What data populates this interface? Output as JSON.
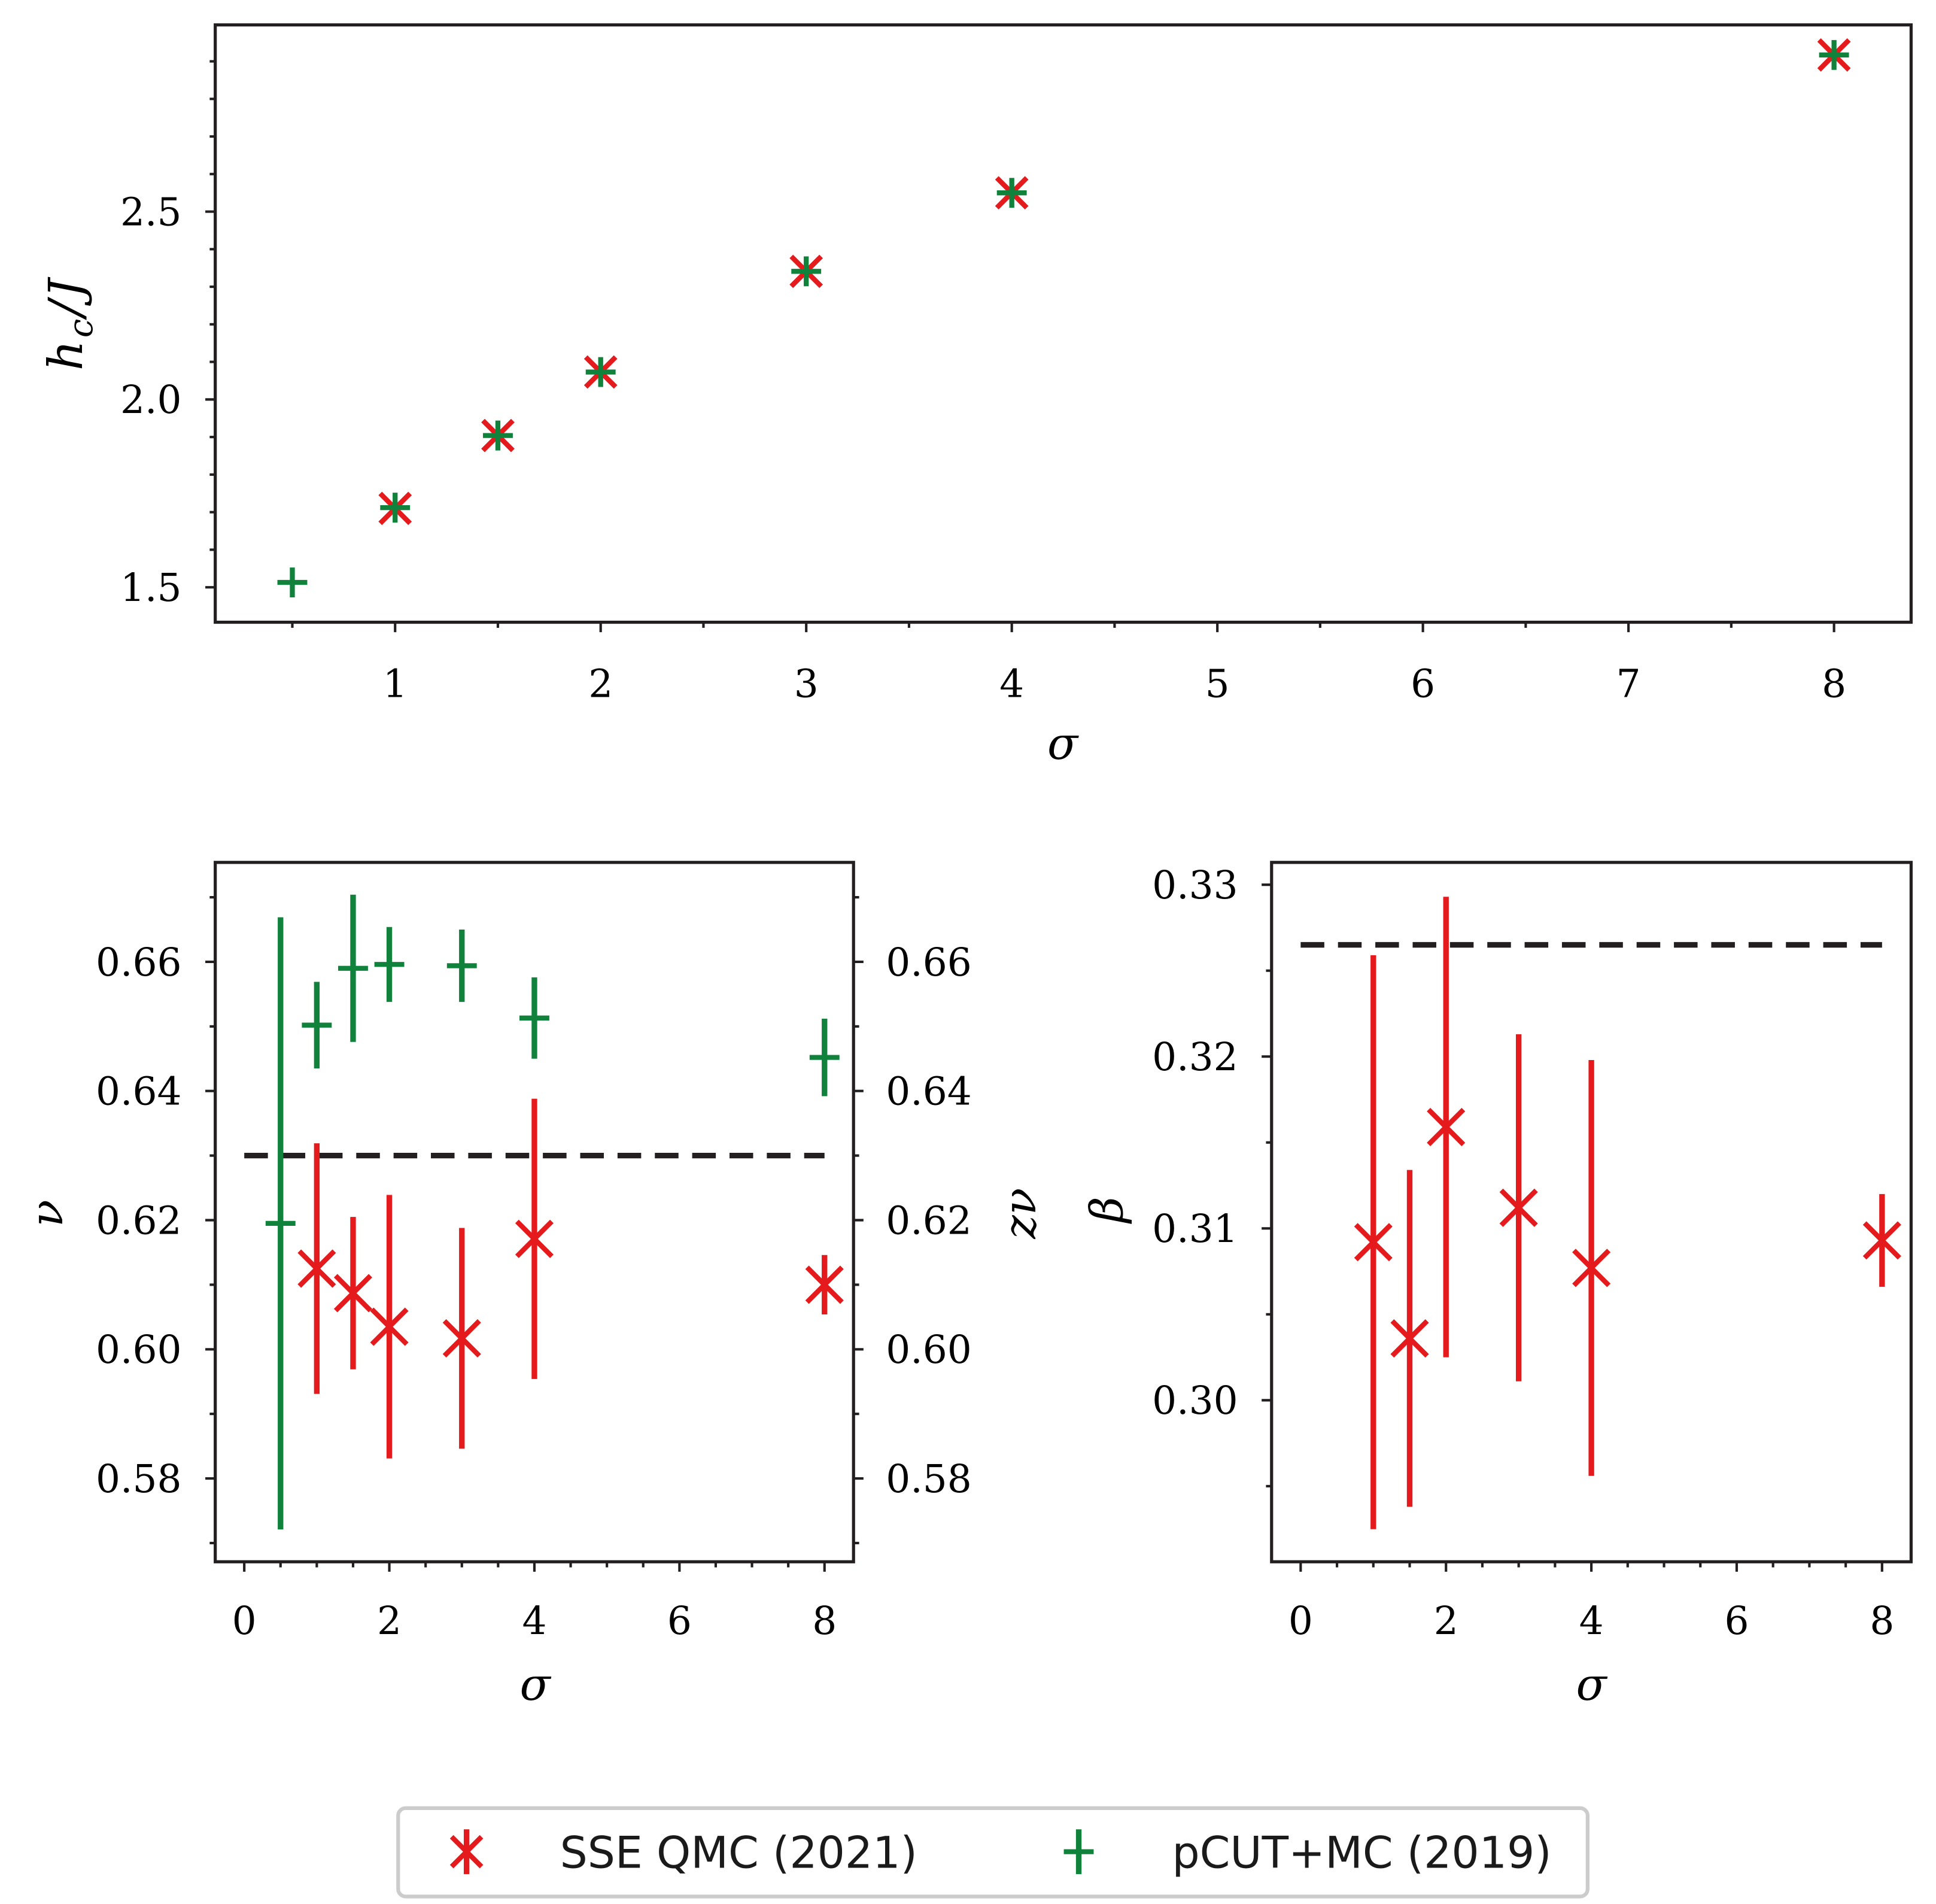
{
  "chart_data": [
    {
      "type": "scatter",
      "xlabel": "σ",
      "ylabel": {
        "base": "h",
        "sub": "c",
        "tail": "/J"
      },
      "xlim": [
        0.125,
        8.375
      ],
      "ylim": [
        1.407,
        2.997
      ],
      "xticks": [
        1,
        2,
        3,
        4,
        5,
        6,
        7,
        8
      ],
      "xtick_labels": [
        "1",
        "2",
        "3",
        "4",
        "5",
        "6",
        "7",
        "8"
      ],
      "xminor": 0.5,
      "yticks": [
        1.5,
        2.0,
        2.5
      ],
      "ytick_labels": [
        "1.5",
        "2.0",
        "2.5"
      ],
      "yminor": 0.1,
      "grid": false,
      "series": [
        {
          "name": "SSE QMC (2021)",
          "color": "#e41a1c",
          "x": [
            1,
            1.5,
            2,
            3,
            4,
            8
          ],
          "y": [
            1.71,
            1.904,
            2.073,
            2.341,
            2.55,
            2.917
          ]
        },
        {
          "name": "pCUT+MC (2019)",
          "color": "#10823c",
          "x": [
            0.5,
            1,
            1.5,
            2,
            3,
            4,
            8
          ],
          "y": [
            1.513,
            1.712,
            1.904,
            2.073,
            2.341,
            2.55,
            2.917
          ]
        }
      ]
    },
    {
      "type": "scatter",
      "xlabel": "σ",
      "ylabel": "ν",
      "ylabel_right": "zν",
      "xlim": [
        -0.4,
        8.4
      ],
      "ylim": [
        0.5671,
        0.6754
      ],
      "ylim_right": [
        0.5671,
        0.6754
      ],
      "xticks": [
        0,
        2,
        4,
        6,
        8
      ],
      "xtick_labels": [
        "0",
        "2",
        "4",
        "6",
        "8"
      ],
      "xminor": 0.5,
      "yticks": [
        0.58,
        0.6,
        0.62,
        0.64,
        0.66
      ],
      "ytick_labels": [
        "0.58",
        "0.60",
        "0.62",
        "0.64",
        "0.66"
      ],
      "yticks_right": [
        0.58,
        0.6,
        0.62,
        0.64,
        0.66
      ],
      "ytick_labels_right": [
        "0.58",
        "0.60",
        "0.62",
        "0.64",
        "0.66"
      ],
      "yminor": 0.01,
      "grid": false,
      "reference_line": {
        "y": 0.63,
        "x": [
          0,
          8
        ],
        "color": "#231f20"
      },
      "series": [
        {
          "name": "SSE QMC (2021)",
          "quantity": "ν",
          "color": "#e41a1c",
          "x": [
            1,
            1.5,
            2,
            3,
            4,
            8
          ],
          "y": [
            0.6125,
            0.6087,
            0.6035,
            0.6017,
            0.6171,
            0.61
          ],
          "yerr": [
            0.0194,
            0.0118,
            0.0204,
            0.0171,
            0.0217,
            0.0046
          ]
        },
        {
          "name": "pCUT+MC (2019)",
          "quantity": "zν",
          "color": "#10823c",
          "x": [
            0.5,
            1,
            1.5,
            2,
            3,
            4,
            8
          ],
          "y": [
            0.6195,
            0.6502,
            0.659,
            0.6596,
            0.6594,
            0.6513,
            0.6452
          ],
          "yerr": [
            0.0474,
            0.0067,
            0.0114,
            0.0058,
            0.0056,
            0.0063,
            0.006
          ]
        }
      ]
    },
    {
      "type": "scatter",
      "xlabel": "σ",
      "ylabel": "β",
      "xlim": [
        -0.4,
        8.4
      ],
      "ylim": [
        0.2906,
        0.3313
      ],
      "xticks": [
        0,
        2,
        4,
        6,
        8
      ],
      "xtick_labels": [
        "0",
        "2",
        "4",
        "6",
        "8"
      ],
      "xminor": 0.5,
      "yticks": [
        0.3,
        0.31,
        0.32,
        0.33
      ],
      "ytick_labels": [
        "0.30",
        "0.31",
        "0.32",
        "0.33"
      ],
      "yminor": 0.005,
      "grid": false,
      "reference_line": {
        "y": 0.3265,
        "x": [
          0,
          8
        ],
        "color": "#231f20"
      },
      "series": [
        {
          "name": "SSE QMC (2021)",
          "quantity": "β",
          "color": "#e41a1c",
          "x": [
            1,
            1.5,
            2,
            3,
            4,
            8
          ],
          "y": [
            0.3092,
            0.3036,
            0.3159,
            0.3112,
            0.3077,
            0.3093
          ],
          "yerr": [
            0.0167,
            0.0098,
            0.0134,
            0.0101,
            0.0121,
            0.0027
          ]
        }
      ]
    }
  ]
}
